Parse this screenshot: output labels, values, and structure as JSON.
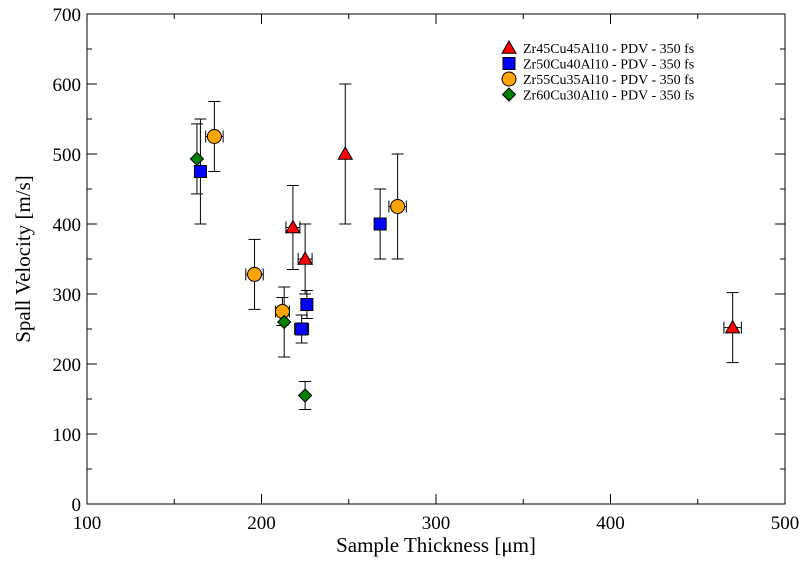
{
  "chart_data": {
    "type": "scatter",
    "title": "",
    "xlabel": "Sample Thickness [μm]",
    "ylabel": "Spall Velocity [m/s]",
    "xlim": [
      100,
      500
    ],
    "ylim": [
      0,
      700
    ],
    "x_ticks": [
      100,
      200,
      300,
      400,
      500
    ],
    "y_ticks": [
      0,
      100,
      200,
      300,
      400,
      500,
      600,
      700
    ],
    "grid": false,
    "legend_position": "top-right",
    "series": [
      {
        "name": "Zr45Cu45Al10 - PDV - 350 fs",
        "marker": "triangle",
        "color": "#ff0000",
        "points": [
          {
            "x": 218,
            "y": 395,
            "xerr": 4,
            "yerr": 60
          },
          {
            "x": 225,
            "y": 350,
            "xerr": 4,
            "yerr": 50
          },
          {
            "x": 248,
            "y": 500,
            "xerr": 0,
            "yerr": 100
          },
          {
            "x": 470,
            "y": 252,
            "xerr": 5,
            "yerr": 50
          }
        ]
      },
      {
        "name": "Zr50Cu40Al10 - PDV - 350 fs",
        "marker": "square",
        "color": "#0000ff",
        "points": [
          {
            "x": 165,
            "y": 475,
            "xerr": 0,
            "yerr": 75
          },
          {
            "x": 223,
            "y": 250,
            "xerr": 4,
            "yerr": 20
          },
          {
            "x": 226,
            "y": 285,
            "xerr": 0,
            "yerr": 20
          },
          {
            "x": 268,
            "y": 400,
            "xerr": 0,
            "yerr": 50
          }
        ]
      },
      {
        "name": "Zr55Cu35Al10 - PDV - 350 fs",
        "marker": "circle",
        "color": "#ffa500",
        "points": [
          {
            "x": 173,
            "y": 525,
            "xerr": 5,
            "yerr": 50
          },
          {
            "x": 196,
            "y": 328,
            "xerr": 5,
            "yerr": 50
          },
          {
            "x": 212,
            "y": 275,
            "xerr": 4,
            "yerr": 20
          },
          {
            "x": 278,
            "y": 425,
            "xerr": 5,
            "yerr": 75
          }
        ]
      },
      {
        "name": "Zr60Cu30Al10 - PDV - 350 fs",
        "marker": "diamond",
        "color": "#008000",
        "points": [
          {
            "x": 163,
            "y": 493,
            "xerr": 0,
            "yerr": 50
          },
          {
            "x": 213,
            "y": 260,
            "xerr": 0,
            "yerr": 50
          },
          {
            "x": 225,
            "y": 155,
            "xerr": 0,
            "yerr": 20
          }
        ]
      }
    ]
  }
}
